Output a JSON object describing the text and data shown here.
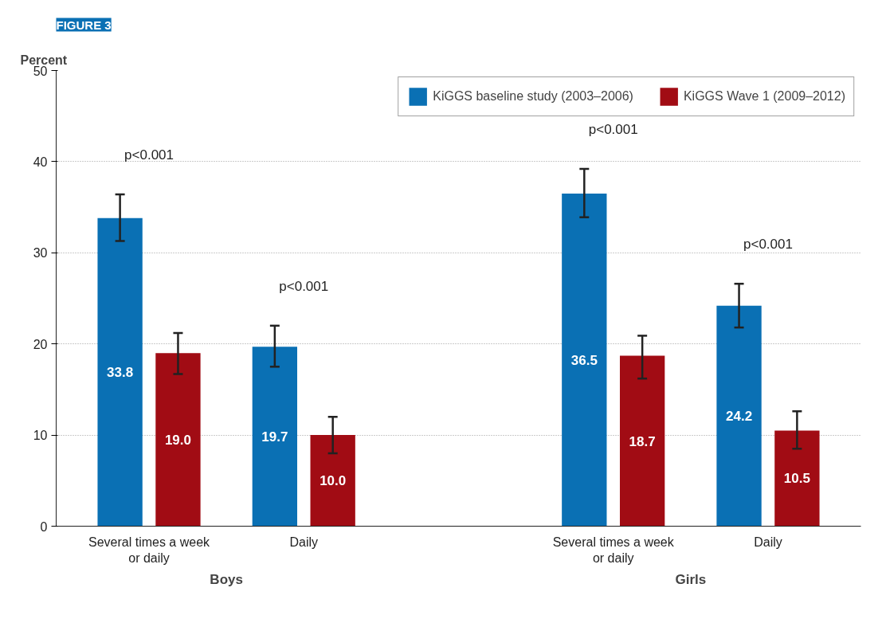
{
  "chart_data": {
    "type": "bar",
    "title": "FIGURE 3",
    "ylabel": "Percent",
    "categories": [
      "Several times a week\nor daily",
      "Daily",
      null,
      "Several times a week\nor daily",
      "Daily"
    ],
    "series": [
      {
        "name": "KiGGS baseline study (2003–2006)",
        "color": "#0a70b4",
        "values": [
          33.8,
          19.7,
          null,
          36.5,
          24.2
        ],
        "errors": [
          [
            31.3,
            36.4
          ],
          [
            17.5,
            22.0
          ],
          null,
          [
            33.9,
            39.2
          ],
          [
            21.8,
            26.6
          ]
        ]
      },
      {
        "name": "KiGGS Wave 1 (2009–2012)",
        "color": "#a10c14",
        "values": [
          19.0,
          10.0,
          null,
          18.7,
          10.5
        ],
        "value_labels": [
          "19.0",
          "10.0",
          null,
          "18.7",
          "10.5"
        ],
        "errors": [
          [
            16.7,
            21.2
          ],
          [
            8.0,
            12.0
          ],
          null,
          [
            16.2,
            20.9
          ],
          [
            8.5,
            12.6
          ]
        ]
      }
    ],
    "ylim": [
      0,
      50
    ],
    "yticks": [
      0,
      10,
      20,
      30,
      40,
      50
    ],
    "grid": "y",
    "legend": "top right",
    "data_labels": true,
    "annotations": [
      "p<0.001",
      "p<0.001",
      "p<0.001",
      "p<0.001",
      "Boys",
      "Girls"
    ]
  }
}
